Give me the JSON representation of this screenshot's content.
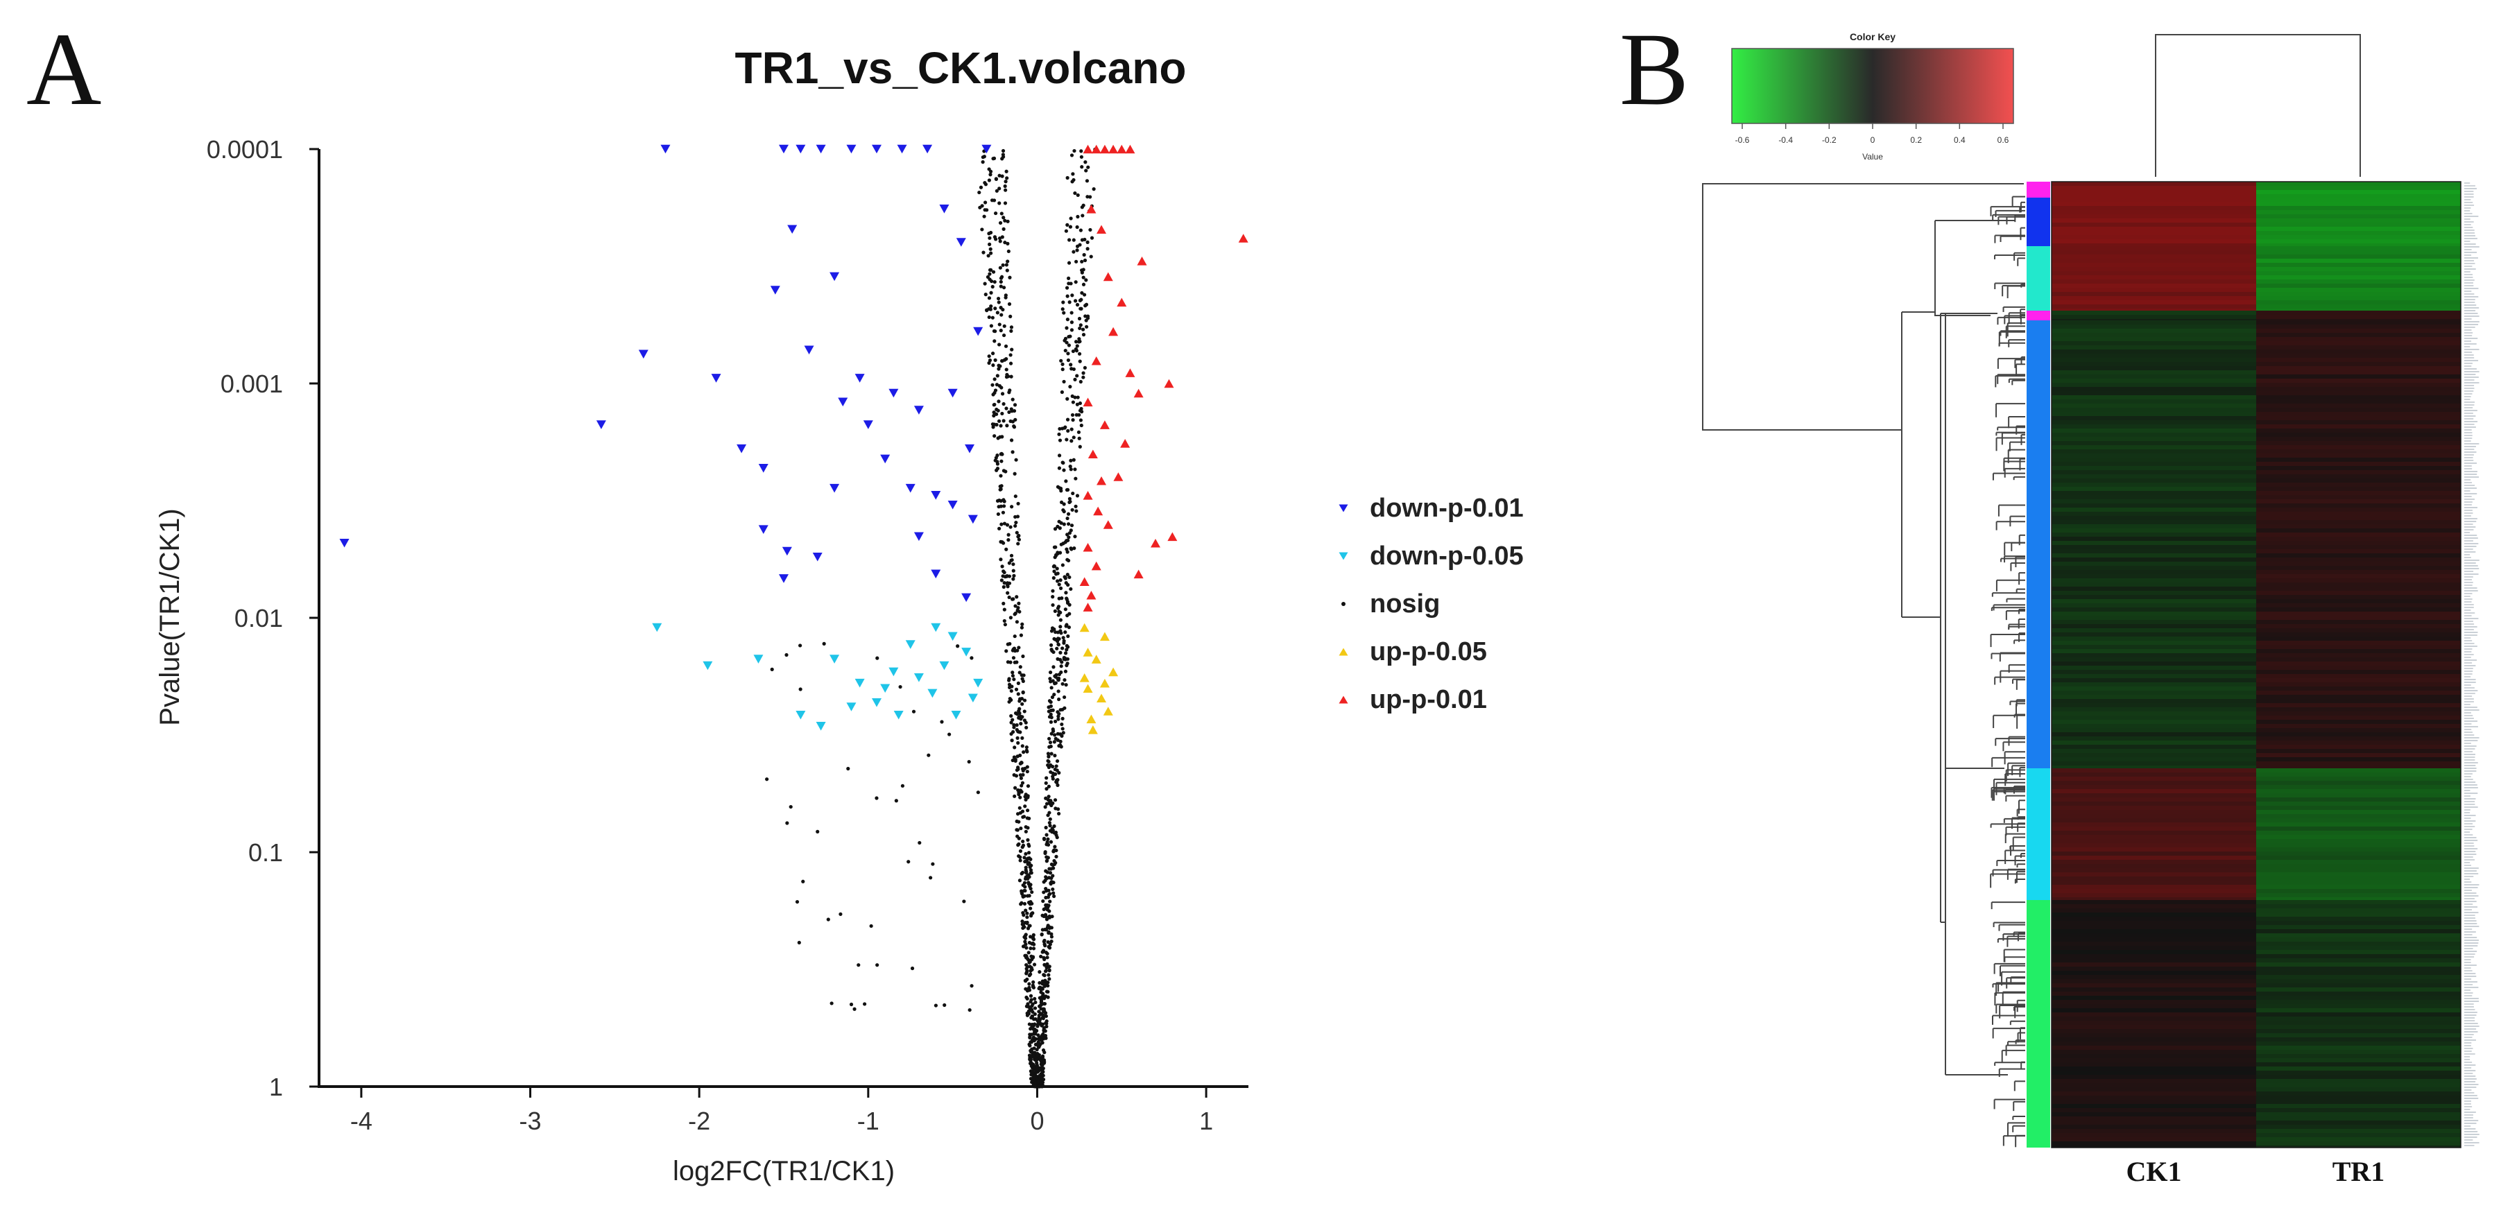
{
  "panel_a": {
    "letter": "A",
    "chart_data": {
      "type": "scatter",
      "title": "TR1_vs_CK1.volcano",
      "xlabel": "log2FC(TR1/CK1)",
      "ylabel": "Pvalue(TR1/CK1)",
      "xlim": [
        -4.25,
        1.25
      ],
      "xticks": [
        -4,
        -3,
        -2,
        -1,
        0,
        1
      ],
      "xtick_labels": [
        "-4",
        "-3",
        "-2",
        "-1",
        "0",
        "1"
      ],
      "y_scale": "log10 reversed",
      "ylim": [
        1,
        0.0001
      ],
      "yticks": [
        0.0001,
        0.001,
        0.01,
        0.1,
        1
      ],
      "ytick_labels": [
        "0.0001",
        "0.001",
        "0.01",
        "0.1",
        "1"
      ],
      "legend": {
        "placement": "right",
        "entries": [
          {
            "label": "down-p-0.01",
            "color": "#1c1ce6",
            "marker": "triangle-down"
          },
          {
            "label": "down-p-0.05",
            "color": "#1fc4e8",
            "marker": "triangle-down"
          },
          {
            "label": "nosig",
            "color": "#111111",
            "marker": "dot"
          },
          {
            "label": "up-p-0.05",
            "color": "#f2c814",
            "marker": "triangle-up"
          },
          {
            "label": "up-p-0.01",
            "color": "#ee2222",
            "marker": "triangle-up"
          }
        ]
      },
      "series": [
        {
          "name": "down-p-0.01",
          "points": [
            [
              -4.1,
              0.0048
            ],
            [
              -2.58,
              0.0015
            ],
            [
              -2.33,
              0.00075
            ],
            [
              -2.2,
              0.0001
            ],
            [
              -1.9,
              0.00095
            ],
            [
              -1.75,
              0.0019
            ],
            [
              -1.62,
              0.0023
            ],
            [
              -1.55,
              0.0004
            ],
            [
              -1.5,
              0.0001
            ],
            [
              -1.45,
              0.00022
            ],
            [
              -1.4,
              0.0001
            ],
            [
              -1.35,
              0.00072
            ],
            [
              -1.28,
              0.0001
            ],
            [
              -1.2,
              0.00035
            ],
            [
              -1.15,
              0.0012
            ],
            [
              -1.1,
              0.0001
            ],
            [
              -1.05,
              0.00095
            ],
            [
              -1.0,
              0.0015
            ],
            [
              -0.95,
              0.0001
            ],
            [
              -0.9,
              0.0021
            ],
            [
              -0.85,
              0.0011
            ],
            [
              -0.8,
              0.0001
            ],
            [
              -0.75,
              0.0028
            ],
            [
              -0.7,
              0.0045
            ],
            [
              -0.65,
              0.0001
            ],
            [
              -0.6,
              0.0065
            ],
            [
              -0.55,
              0.00018
            ],
            [
              -0.5,
              0.0033
            ],
            [
              -0.45,
              0.00025
            ],
            [
              -0.4,
              0.0019
            ],
            [
              -0.35,
              0.0006
            ],
            [
              -0.3,
              0.0001
            ],
            [
              -0.42,
              0.0082
            ],
            [
              -0.6,
              0.003
            ],
            [
              -1.3,
              0.0055
            ],
            [
              -1.5,
              0.0068
            ],
            [
              -1.62,
              0.0042
            ],
            [
              -1.48,
              0.0052
            ],
            [
              -1.2,
              0.0028
            ],
            [
              -0.7,
              0.0013
            ],
            [
              -0.5,
              0.0011
            ],
            [
              -0.38,
              0.0038
            ]
          ]
        },
        {
          "name": "down-p-0.05",
          "points": [
            [
              -2.25,
              0.011
            ],
            [
              -1.95,
              0.016
            ],
            [
              -1.65,
              0.015
            ],
            [
              -1.4,
              0.026
            ],
            [
              -1.28,
              0.029
            ],
            [
              -1.2,
              0.015
            ],
            [
              -1.05,
              0.019
            ],
            [
              -0.95,
              0.023
            ],
            [
              -0.9,
              0.02
            ],
            [
              -0.82,
              0.026
            ],
            [
              -0.75,
              0.013
            ],
            [
              -0.7,
              0.018
            ],
            [
              -0.62,
              0.021
            ],
            [
              -0.55,
              0.016
            ],
            [
              -0.48,
              0.026
            ],
            [
              -0.42,
              0.014
            ],
            [
              -0.38,
              0.022
            ],
            [
              -0.5,
              0.012
            ],
            [
              -0.35,
              0.019
            ],
            [
              -0.6,
              0.011
            ],
            [
              -0.85,
              0.017
            ],
            [
              -1.1,
              0.024
            ]
          ]
        },
        {
          "name": "up-p-0.05",
          "points": [
            [
              0.28,
              0.011
            ],
            [
              0.3,
              0.02
            ],
            [
              0.32,
              0.027
            ],
            [
              0.35,
              0.015
            ],
            [
              0.38,
              0.022
            ],
            [
              0.4,
              0.012
            ],
            [
              0.42,
              0.025
            ],
            [
              0.45,
              0.017
            ],
            [
              0.3,
              0.014
            ],
            [
              0.33,
              0.03
            ],
            [
              0.28,
              0.018
            ],
            [
              0.4,
              0.019
            ]
          ]
        },
        {
          "name": "up-p-0.01",
          "points": [
            [
              1.22,
              0.00024
            ],
            [
              0.78,
              0.001
            ],
            [
              0.8,
              0.0045
            ],
            [
              0.7,
              0.0048
            ],
            [
              0.6,
              0.0065
            ],
            [
              0.3,
              0.0001
            ],
            [
              0.35,
              0.0001
            ],
            [
              0.4,
              0.0001
            ],
            [
              0.45,
              0.0001
            ],
            [
              0.5,
              0.0001
            ],
            [
              0.55,
              0.0001
            ],
            [
              0.32,
              0.00018
            ],
            [
              0.38,
              0.00022
            ],
            [
              0.42,
              0.00035
            ],
            [
              0.5,
              0.00045
            ],
            [
              0.45,
              0.0006
            ],
            [
              0.35,
              0.0008
            ],
            [
              0.55,
              0.0009
            ],
            [
              0.3,
              0.0012
            ],
            [
              0.4,
              0.0015
            ],
            [
              0.33,
              0.002
            ],
            [
              0.48,
              0.0025
            ],
            [
              0.3,
              0.003
            ],
            [
              0.36,
              0.0035
            ],
            [
              0.42,
              0.004
            ],
            [
              0.3,
              0.005
            ],
            [
              0.35,
              0.006
            ],
            [
              0.28,
              0.007
            ],
            [
              0.32,
              0.008
            ],
            [
              0.3,
              0.009
            ],
            [
              0.6,
              0.0011
            ],
            [
              0.62,
              0.0003
            ],
            [
              0.52,
              0.0018
            ],
            [
              0.38,
              0.0026
            ]
          ]
        },
        {
          "name": "nosig",
          "note": "about 1500 grey-black points forming a narrow V around log2FC 0, from p 1 up to p 0.0001; drawn procedurally",
          "count": 1500
        }
      ]
    }
  },
  "panel_b": {
    "letter": "B",
    "color_key": {
      "title": "Color Key",
      "xlabel": "Value",
      "ticks": [
        "-0.6",
        "-0.4",
        "-0.2",
        "0",
        "0.2",
        "0.4",
        "0.6"
      ],
      "low_color": "#33ee44",
      "mid_color": "#2a2a2a",
      "high_color": "#f25050"
    },
    "chart_data": {
      "type": "heatmap",
      "columns": [
        "CK1",
        "TR1"
      ],
      "row_clusters": [
        {
          "cluster": 1,
          "side_color": "#ff22ee",
          "CK1": 0.45,
          "TR1": -0.5
        },
        {
          "cluster": 2,
          "side_color": "#1133ee",
          "CK1": 0.42,
          "TR1": -0.48
        },
        {
          "cluster": 3,
          "side_color": "#22e8cc",
          "CK1": 0.4,
          "TR1": -0.45
        },
        {
          "cluster": 4,
          "side_color": "#ff22ee",
          "CK1": -0.1,
          "TR1": 0.08
        },
        {
          "cluster": 5,
          "side_color": "#1a7ef0",
          "CK1": -0.12,
          "TR1": 0.1
        },
        {
          "cluster": 6,
          "side_color": "#18d8f0",
          "CK1": 0.25,
          "TR1": -0.28
        },
        {
          "cluster": 7,
          "side_color": "#22ee66",
          "CK1": 0.05,
          "TR1": -0.12
        }
      ]
    }
  }
}
